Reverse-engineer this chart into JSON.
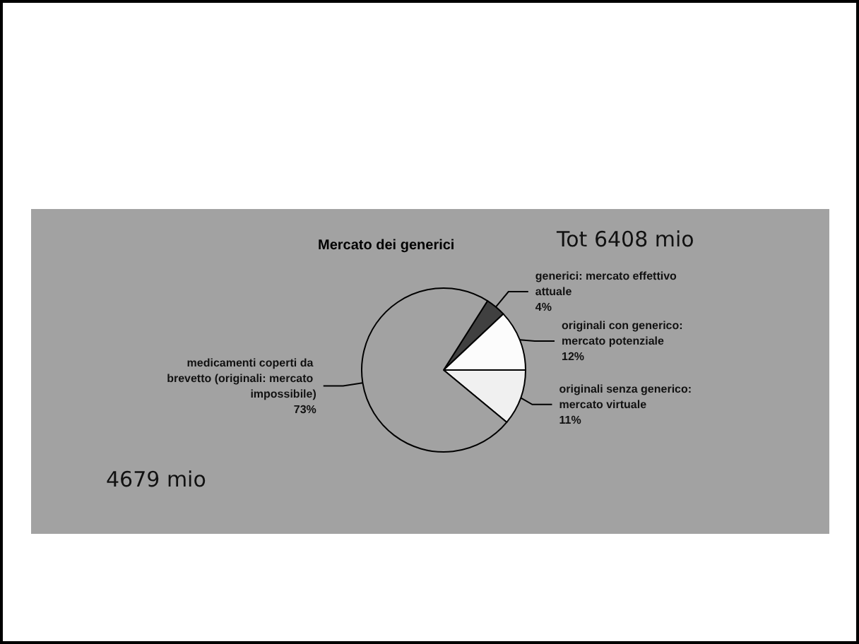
{
  "chart_data": {
    "type": "pie",
    "title": "Mercato dei generici",
    "categories": [
      "generici: mercato effettivo attuale",
      "originali con generico: mercato potenziale",
      "originali senza generico: mercato virtuale",
      "medicamenti coperti da brevetto (originali: mercato impossibile)"
    ],
    "values": [
      4,
      12,
      11,
      73
    ],
    "value_labels": [
      "4%",
      "12%",
      "11%",
      "73%"
    ],
    "colors": [
      "#404040",
      "#fcfcfc",
      "#f0f0f0",
      "#a2a2a2"
    ],
    "annotations": [
      "Tot 6408 mio",
      "4679 mio"
    ],
    "legend": false
  }
}
